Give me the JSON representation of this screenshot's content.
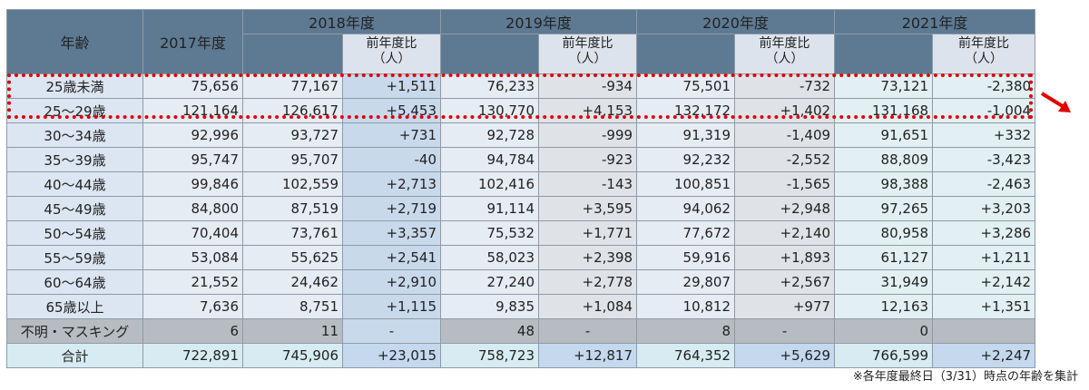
{
  "header": {
    "age_label": "年齢",
    "y2017": "2017年度",
    "y2018": "2018年度",
    "y2019": "2019年度",
    "y2020": "2020年度",
    "y2021": "2021年度",
    "ratio_line1": "前年度比",
    "ratio_line2": "（人）"
  },
  "rows": [
    {
      "age": "25歳未満",
      "v2017": "75,656",
      "v2018": "77,167",
      "d2018": "+1,511",
      "v2019": "76,233",
      "d2019": "-934",
      "v2020": "75,501",
      "d2020": "-732",
      "v2021": "73,121",
      "d2021": "-2,380"
    },
    {
      "age": "25～29歳",
      "v2017": "121,164",
      "v2018": "126,617",
      "d2018": "+5,453",
      "v2019": "130,770",
      "d2019": "+4,153",
      "v2020": "132,172",
      "d2020": "+1,402",
      "v2021": "131,168",
      "d2021": "-1,004"
    },
    {
      "age": "30～34歳",
      "v2017": "92,996",
      "v2018": "93,727",
      "d2018": "+731",
      "v2019": "92,728",
      "d2019": "-999",
      "v2020": "91,319",
      "d2020": "-1,409",
      "v2021": "91,651",
      "d2021": "+332"
    },
    {
      "age": "35～39歳",
      "v2017": "95,747",
      "v2018": "95,707",
      "d2018": "-40",
      "v2019": "94,784",
      "d2019": "-923",
      "v2020": "92,232",
      "d2020": "-2,552",
      "v2021": "88,809",
      "d2021": "-3,423"
    },
    {
      "age": "40～44歳",
      "v2017": "99,846",
      "v2018": "102,559",
      "d2018": "+2,713",
      "v2019": "102,416",
      "d2019": "-143",
      "v2020": "100,851",
      "d2020": "-1,565",
      "v2021": "98,388",
      "d2021": "-2,463"
    },
    {
      "age": "45～49歳",
      "v2017": "84,800",
      "v2018": "87,519",
      "d2018": "+2,719",
      "v2019": "91,114",
      "d2019": "+3,595",
      "v2020": "94,062",
      "d2020": "+2,948",
      "v2021": "97,265",
      "d2021": "+3,203"
    },
    {
      "age": "50～54歳",
      "v2017": "70,404",
      "v2018": "73,761",
      "d2018": "+3,357",
      "v2019": "75,532",
      "d2019": "+1,771",
      "v2020": "77,672",
      "d2020": "+2,140",
      "v2021": "80,958",
      "d2021": "+3,286"
    },
    {
      "age": "55～59歳",
      "v2017": "53,084",
      "v2018": "55,625",
      "d2018": "+2,541",
      "v2019": "58,023",
      "d2019": "+2,398",
      "v2020": "59,916",
      "d2020": "+1,893",
      "v2021": "61,127",
      "d2021": "+1,211"
    },
    {
      "age": "60～64歳",
      "v2017": "21,552",
      "v2018": "24,462",
      "d2018": "+2,910",
      "v2019": "27,240",
      "d2019": "+2,778",
      "v2020": "29,807",
      "d2020": "+2,567",
      "v2021": "31,949",
      "d2021": "+2,142"
    },
    {
      "age": "65歳以上",
      "v2017": "7,636",
      "v2018": "8,751",
      "d2018": "+1,115",
      "v2019": "9,835",
      "d2019": "+1,084",
      "v2020": "10,812",
      "d2020": "+977",
      "v2021": "12,163",
      "d2021": "+1,351"
    }
  ],
  "unknown": {
    "age": "不明・マスキング",
    "v2017": "6",
    "v2018": "11",
    "d2018": "-",
    "v2019": "48",
    "d2019": "-",
    "v2020": "8",
    "d2020": "-",
    "v2021": "0",
    "d2021": ""
  },
  "total": {
    "age": "合計",
    "v2017": "722,891",
    "v2018": "745,906",
    "d2018": "+23,015",
    "v2019": "758,723",
    "d2019": "+12,817",
    "v2020": "764,352",
    "d2020": "+5,629",
    "v2021": "766,599",
    "d2021": "+2,247"
  },
  "footnote": "※各年度最終日（3/31）時点の年齢を集計",
  "colors": {
    "negative": "#e00000",
    "header": "#5e7a93",
    "highlight_box": "#e00000"
  },
  "icons": {
    "arrow": "arrow-down-right-icon"
  }
}
